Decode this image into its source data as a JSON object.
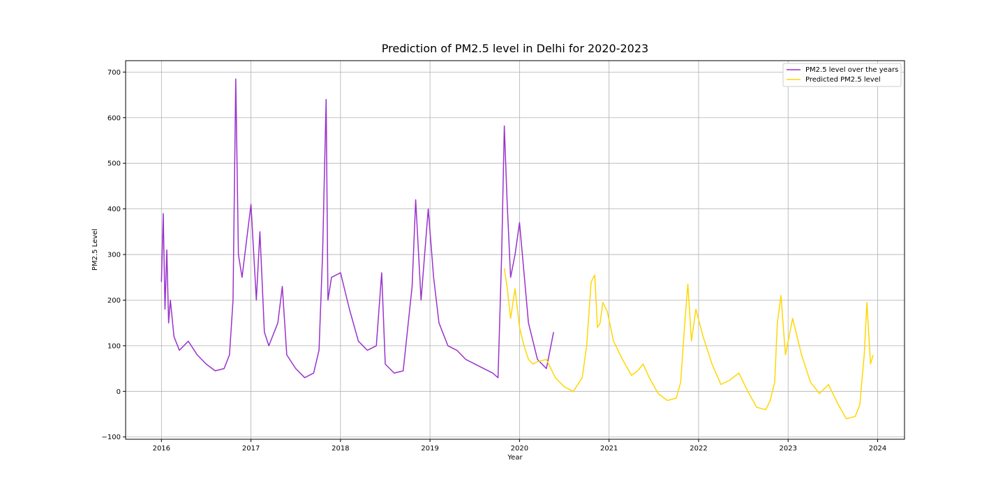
{
  "chart_data": {
    "type": "line",
    "title": "Prediction of PM2.5 level in Delhi for 2020-2023",
    "xlabel": "Year",
    "ylabel": "PM2.5 Level",
    "xlim": [
      2015.6,
      2024.3
    ],
    "ylim": [
      -105,
      725
    ],
    "x_ticks": [
      2016,
      2017,
      2018,
      2019,
      2020,
      2021,
      2022,
      2023,
      2024
    ],
    "x_tick_labels": [
      "2016",
      "2017",
      "2018",
      "2019",
      "2020",
      "2021",
      "2022",
      "2023",
      "2024"
    ],
    "y_ticks": [
      -100,
      0,
      100,
      200,
      300,
      400,
      500,
      600,
      700
    ],
    "y_tick_labels": [
      "−100",
      "0",
      "100",
      "200",
      "300",
      "400",
      "500",
      "600",
      "700"
    ],
    "grid": true,
    "legend_position": "top-right",
    "series": [
      {
        "name": "PM2.5 level over the years",
        "color": "#9932cc",
        "x": [
          2016.0,
          2016.02,
          2016.04,
          2016.06,
          2016.08,
          2016.1,
          2016.14,
          2016.2,
          2016.3,
          2016.4,
          2016.5,
          2016.6,
          2016.7,
          2016.76,
          2016.8,
          2016.83,
          2016.86,
          2016.9,
          2017.0,
          2017.06,
          2017.1,
          2017.15,
          2017.2,
          2017.3,
          2017.35,
          2017.4,
          2017.5,
          2017.6,
          2017.7,
          2017.76,
          2017.8,
          2017.84,
          2017.86,
          2017.9,
          2018.0,
          2018.1,
          2018.2,
          2018.3,
          2018.4,
          2018.46,
          2018.5,
          2018.6,
          2018.7,
          2018.8,
          2018.84,
          2018.9,
          2018.98,
          2019.04,
          2019.1,
          2019.2,
          2019.3,
          2019.4,
          2019.5,
          2019.6,
          2019.7,
          2019.76,
          2019.8,
          2019.83,
          2019.86,
          2019.9,
          2019.95,
          2020.0,
          2020.1,
          2020.2,
          2020.3,
          2020.38
        ],
        "y": [
          240,
          390,
          180,
          310,
          150,
          200,
          120,
          90,
          110,
          80,
          60,
          45,
          50,
          80,
          200,
          685,
          300,
          250,
          410,
          200,
          350,
          130,
          100,
          150,
          230,
          80,
          50,
          30,
          40,
          90,
          300,
          640,
          200,
          250,
          260,
          180,
          110,
          90,
          100,
          260,
          60,
          40,
          45,
          230,
          420,
          200,
          400,
          250,
          150,
          100,
          90,
          70,
          60,
          50,
          40,
          30,
          300,
          582,
          420,
          250,
          300,
          370,
          150,
          70,
          50,
          130
        ]
      },
      {
        "name": "Predicted PM2.5 level",
        "color": "#ffd700",
        "x": [
          2019.83,
          2019.86,
          2019.9,
          2019.95,
          2020.0,
          2020.05,
          2020.1,
          2020.15,
          2020.2,
          2020.3,
          2020.4,
          2020.5,
          2020.6,
          2020.7,
          2020.75,
          2020.8,
          2020.84,
          2020.87,
          2020.9,
          2020.93,
          2020.98,
          2021.05,
          2021.15,
          2021.25,
          2021.32,
          2021.38,
          2021.45,
          2021.55,
          2021.65,
          2021.75,
          2021.8,
          2021.85,
          2021.88,
          2021.92,
          2021.97,
          2022.05,
          2022.15,
          2022.25,
          2022.35,
          2022.45,
          2022.55,
          2022.65,
          2022.75,
          2022.8,
          2022.85,
          2022.88,
          2022.92,
          2022.97,
          2023.05,
          2023.15,
          2023.25,
          2023.35,
          2023.45,
          2023.55,
          2023.65,
          2023.75,
          2023.8,
          2023.85,
          2023.88,
          2023.92,
          2023.95
        ],
        "y": [
          270,
          230,
          160,
          225,
          140,
          100,
          70,
          60,
          65,
          70,
          30,
          10,
          0,
          30,
          100,
          240,
          255,
          140,
          150,
          195,
          175,
          110,
          70,
          35,
          45,
          60,
          30,
          -5,
          -20,
          -15,
          20,
          160,
          235,
          110,
          180,
          120,
          60,
          15,
          25,
          40,
          0,
          -35,
          -40,
          -20,
          20,
          150,
          210,
          80,
          160,
          80,
          20,
          -5,
          15,
          -25,
          -60,
          -55,
          -30,
          80,
          195,
          60,
          80
        ]
      }
    ]
  }
}
